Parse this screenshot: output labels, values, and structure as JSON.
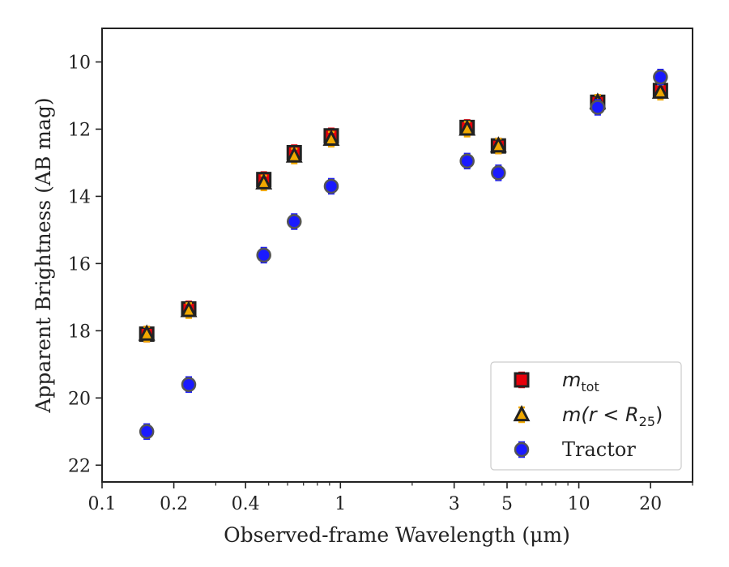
{
  "chart_data": {
    "type": "scatter",
    "xlabel": "Observed-frame Wavelength (μm)",
    "ylabel": "Apparent Brightness (AB mag)",
    "xscale": "log",
    "xlim": [
      0.1,
      30
    ],
    "ylim": [
      22.5,
      9
    ],
    "y_inverted": true,
    "grid": false,
    "legend_position": "lower-right",
    "x_ticks": [
      {
        "value": 0.1,
        "label": "0.1"
      },
      {
        "value": 0.2,
        "label": "0.2"
      },
      {
        "value": 0.4,
        "label": "0.4"
      },
      {
        "value": 1,
        "label": "1"
      },
      {
        "value": 3,
        "label": "3"
      },
      {
        "value": 5,
        "label": "5"
      },
      {
        "value": 10,
        "label": "10"
      },
      {
        "value": 20,
        "label": "20"
      }
    ],
    "y_ticks": [
      {
        "value": 10,
        "label": "10"
      },
      {
        "value": 12,
        "label": "12"
      },
      {
        "value": 14,
        "label": "14"
      },
      {
        "value": 16,
        "label": "16"
      },
      {
        "value": 18,
        "label": "18"
      },
      {
        "value": 20,
        "label": "20"
      },
      {
        "value": 22,
        "label": "22"
      }
    ],
    "series": [
      {
        "name": "m_tot",
        "legend_main": "m",
        "legend_sub": "tot",
        "marker": "square",
        "color": "#e8000b",
        "edge_color": "#222222",
        "x": [
          0.154,
          0.231,
          0.477,
          0.64,
          0.915,
          3.4,
          4.6,
          12.0,
          22.0
        ],
        "y": [
          18.1,
          17.35,
          13.5,
          12.7,
          12.2,
          11.95,
          12.5,
          11.2,
          10.85
        ]
      },
      {
        "name": "m(r < R_25)",
        "legend_main": "m(r < R",
        "legend_sub": "25",
        "legend_end": ")",
        "marker": "triangle",
        "color": "#f0a800",
        "edge_color": "#222222",
        "x": [
          0.154,
          0.231,
          0.477,
          0.64,
          0.915,
          3.4,
          4.6,
          12.0,
          22.0
        ],
        "y": [
          18.1,
          17.4,
          13.6,
          12.8,
          12.3,
          12.0,
          12.5,
          11.2,
          10.9
        ]
      },
      {
        "name": "Tractor",
        "legend_main": "Tractor",
        "marker": "circle",
        "color": "#1a1aff",
        "edge_color": "#555555",
        "x": [
          0.154,
          0.231,
          0.477,
          0.64,
          0.915,
          3.4,
          4.6,
          12.0,
          22.0
        ],
        "y": [
          21.0,
          19.6,
          15.75,
          14.75,
          13.7,
          12.95,
          13.3,
          11.35,
          10.45
        ]
      }
    ]
  }
}
